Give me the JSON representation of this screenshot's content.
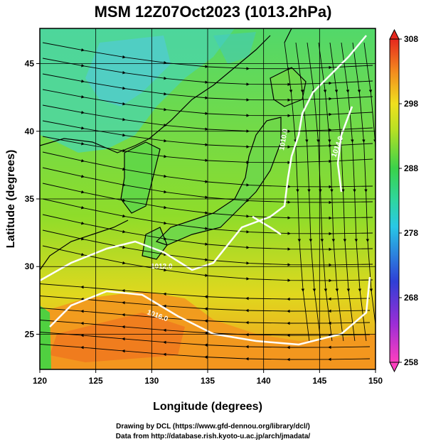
{
  "title": "MSM 12Z07Oct2023 (1013.2hPa)",
  "axes": {
    "xlabel": "Longitude (degrees)",
    "ylabel": "Latitude  (degrees)",
    "xticks": [
      "120",
      "125",
      "130",
      "135",
      "140",
      "145",
      "150"
    ],
    "yticks": [
      "25",
      "30",
      "35",
      "40",
      "45"
    ],
    "xrange": [
      120,
      150
    ],
    "yrange": [
      22.4,
      47.6
    ]
  },
  "colorbar": {
    "ticks": [
      "308",
      "298",
      "288",
      "278",
      "268",
      "258"
    ],
    "range": [
      258,
      308
    ],
    "colors": [
      "#ff3fbf",
      "#9b2dd6",
      "#3a2fd6",
      "#1f6fe0",
      "#28c8e6",
      "#2fd6a0",
      "#3ad24a",
      "#8fdc2a",
      "#e6e61e",
      "#f5b81e",
      "#f38a1e",
      "#ee5a1e",
      "#e6281e"
    ]
  },
  "contour_labels": [
    "1010.0",
    "1012.0",
    "1016.0",
    "1014.0"
  ],
  "credits": {
    "line1": "Drawing by DCL (https://www.gfd-dennou.org/library/dcl/)",
    "line2": "Data from http://database.rish.kyoto-u.ac.jp/arch/jmadata/"
  },
  "colors": {
    "land": "#7fdc3a",
    "cold_land": "#3ec8c8",
    "warm_sea": "#f09a20",
    "mid_sea": "#c8dc30",
    "contour": "#ffffff",
    "grid": "#000000"
  }
}
